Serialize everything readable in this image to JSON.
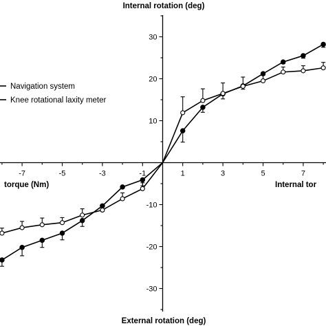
{
  "chart_data": {
    "type": "line",
    "y_axis_title_top": "Internal rotation (deg)",
    "y_axis_title_bottom": "External rotation (deg)",
    "x_axis_title_left": "torque (Nm)",
    "x_axis_title_right": "Internal tor",
    "xlim": [
      -8,
      8
    ],
    "ylim": [
      -36,
      36
    ],
    "x_ticks": [
      -7,
      -5,
      -3,
      -1,
      1,
      3,
      5,
      7
    ],
    "y_ticks": [
      -30,
      -20,
      -10,
      10,
      20,
      30
    ],
    "grid": false,
    "legend_position": "left",
    "series": [
      {
        "name": "Navigation system",
        "marker": "filled-circle",
        "color": "#000000",
        "x": [
          -8,
          -7,
          -6,
          -5,
          -4,
          -3,
          -2,
          -1,
          0,
          1,
          2,
          3,
          4,
          5,
          6,
          7,
          8
        ],
        "y": [
          -23.2,
          -20.2,
          -18.5,
          -16.8,
          -13.8,
          -10.3,
          -5.8,
          -4.1,
          0,
          7.6,
          13.2,
          16.4,
          18.3,
          21.2,
          24.0,
          25.5,
          28.2
        ],
        "err": [
          1.5,
          2.0,
          1.7,
          1.6,
          1.4,
          1.3,
          0,
          1.4,
          0,
          2.7,
          1.2,
          1.2,
          0.8,
          0.4,
          0.4,
          0.6,
          0.7
        ],
        "err_dir": "outward-below"
      },
      {
        "name": "Knee rotational laxity meter",
        "marker": "open-circle",
        "color": "#000000",
        "x": [
          -8,
          -7,
          -6,
          -5,
          -4,
          -3,
          -2,
          -1,
          0,
          1,
          2,
          3,
          4,
          5,
          6,
          7,
          8
        ],
        "y": [
          -16.8,
          -15.5,
          -14.8,
          -14.3,
          -12.5,
          -11.3,
          -8.6,
          -6.2,
          0,
          11.9,
          14.8,
          16.5,
          18.2,
          19.5,
          21.6,
          21.9,
          22.6
        ],
        "err": [
          1.2,
          1.5,
          1.6,
          1.2,
          1.5,
          1.3,
          1.4,
          1.4,
          0,
          3.8,
          2.8,
          2.5,
          2.2,
          1.8,
          1.2,
          1.2,
          1.3
        ],
        "err_dir": "outward-above"
      }
    ]
  }
}
